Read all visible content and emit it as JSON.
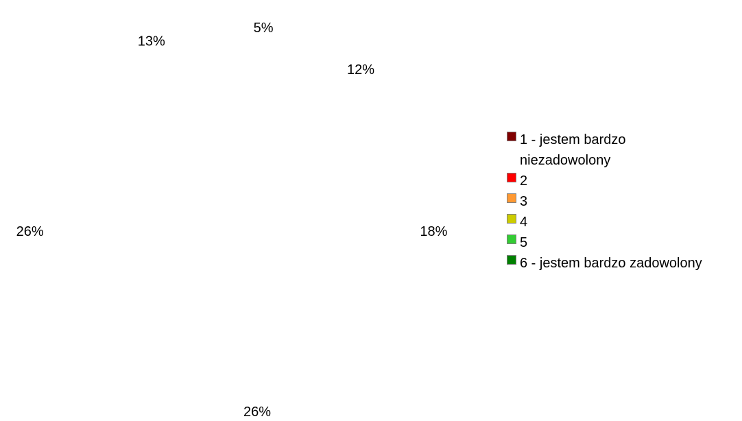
{
  "chart_data": {
    "type": "pie",
    "title": "",
    "categories": [
      "1 - jestem bardzo niezadowolony",
      "2",
      "3",
      "4",
      "5",
      "6 - jestem bardzo zadowolony"
    ],
    "values": [
      5,
      12,
      18,
      26,
      26,
      13
    ],
    "labels": [
      "5%",
      "12%",
      "18%",
      "26%",
      "26%",
      "13%"
    ],
    "colors": [
      "#800000",
      "#ff0000",
      "#ff9933",
      "#cccc00",
      "#33cc33",
      "#008000"
    ],
    "legend_position": "right",
    "slices_rendered": false
  }
}
